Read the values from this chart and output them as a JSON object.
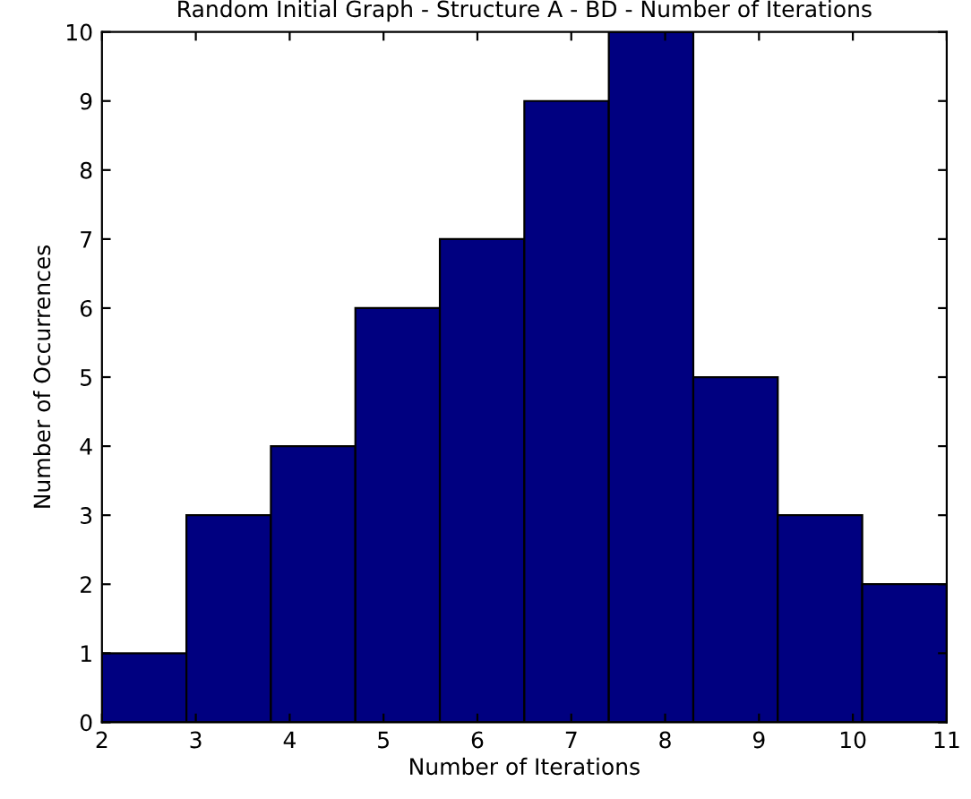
{
  "chart_data": {
    "type": "histogram",
    "title": "Random Initial Graph - Structure A - BD - Number of Iterations",
    "xlabel": "Number of Iterations",
    "ylabel": "Number of Occurrences",
    "bins": [
      2,
      2.9,
      3.8,
      4.7,
      5.6,
      6.5,
      7.4,
      8.3,
      9.2,
      10.1,
      11
    ],
    "values": [
      1,
      3,
      4,
      6,
      7,
      9,
      10,
      5,
      3,
      2
    ],
    "color": "#000080",
    "xlim": [
      2,
      11
    ],
    "ylim": [
      0,
      10
    ],
    "xticks": [
      2,
      3,
      4,
      5,
      6,
      7,
      8,
      9,
      10,
      11
    ],
    "yticks": [
      0,
      1,
      2,
      3,
      4,
      5,
      6,
      7,
      8,
      9,
      10
    ],
    "grid": false
  }
}
